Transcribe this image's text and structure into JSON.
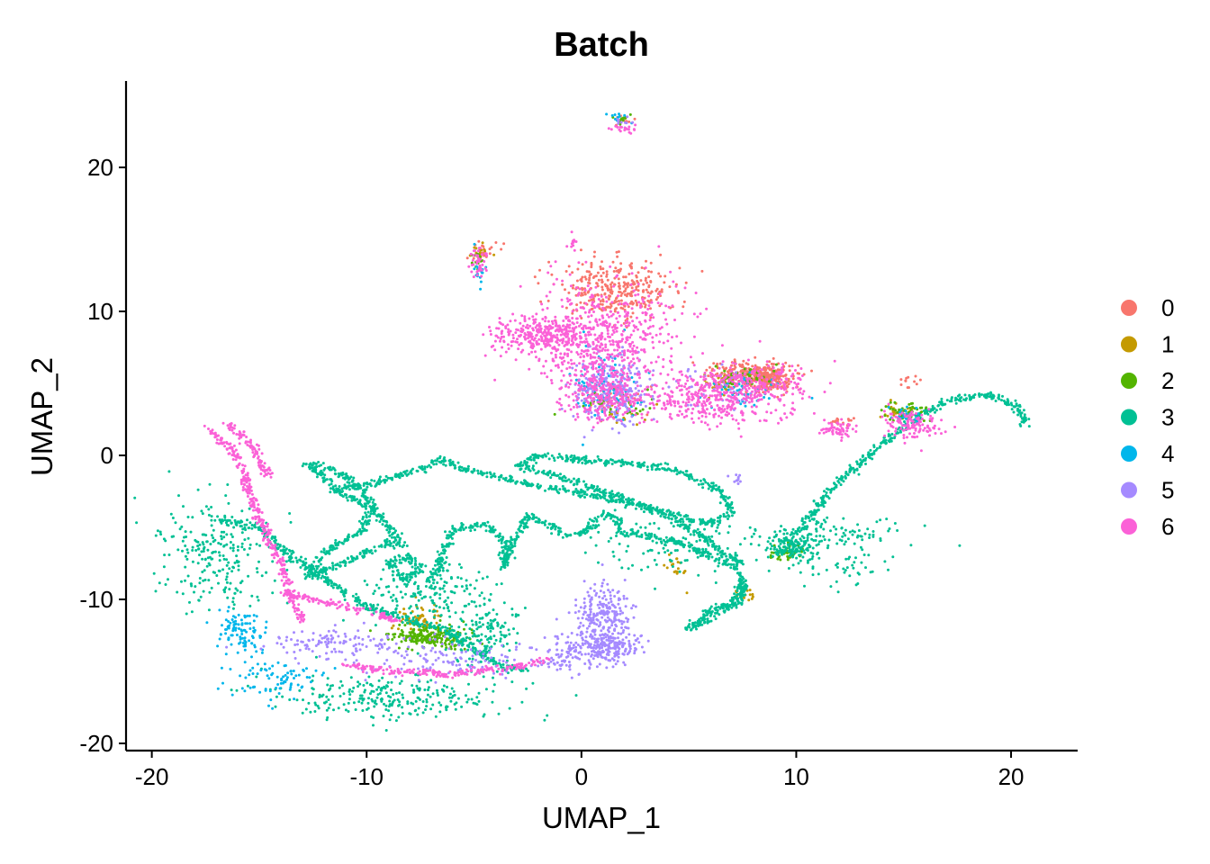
{
  "chart_data": {
    "type": "scatter",
    "title": "Batch",
    "xlabel": "UMAP_1",
    "ylabel": "UMAP_2",
    "xlim": [
      -21.2,
      23.1
    ],
    "ylim": [
      -20.5,
      26.0
    ],
    "xticks": [
      -20,
      -10,
      0,
      10,
      20
    ],
    "yticks": [
      -20,
      -10,
      0,
      10,
      20
    ],
    "xtick_labels": [
      "-20",
      "-10",
      "0",
      "10",
      "20"
    ],
    "ytick_labels": [
      "-20",
      "-10",
      "0",
      "10",
      "20"
    ],
    "grid": false,
    "legend_position": "right",
    "legend_title": "",
    "series": [
      {
        "name": "0",
        "color": "#F8766D",
        "clusters": [
          {
            "x": 1.5,
            "y": 11.5,
            "sx": 1.4,
            "sy": 1.0,
            "n": 320
          },
          {
            "x": 7.8,
            "y": 5.6,
            "sx": 1.0,
            "sy": 0.5,
            "n": 260
          },
          {
            "x": 8.8,
            "y": 5.2,
            "sx": 0.5,
            "sy": 0.4,
            "n": 150
          },
          {
            "x": -4.6,
            "y": 14.1,
            "sx": 0.4,
            "sy": 0.3,
            "n": 25
          },
          {
            "x": 15.2,
            "y": 5.1,
            "sx": 0.2,
            "sy": 0.3,
            "n": 12
          },
          {
            "x": 1.2,
            "y": 4.2,
            "sx": 0.8,
            "sy": 0.6,
            "n": 40
          },
          {
            "x": 2.0,
            "y": 23.3,
            "sx": 0.3,
            "sy": 0.2,
            "n": 10
          },
          {
            "x": 12.0,
            "y": 2.3,
            "sx": 0.3,
            "sy": 0.2,
            "n": 15
          }
        ]
      },
      {
        "name": "1",
        "color": "#C49A00",
        "clusters": [
          {
            "x": -7.6,
            "y": -11.4,
            "sx": 0.5,
            "sy": 0.5,
            "n": 70
          },
          {
            "x": 14.8,
            "y": 3.0,
            "sx": 0.4,
            "sy": 0.3,
            "n": 40
          },
          {
            "x": 4.4,
            "y": -7.8,
            "sx": 0.3,
            "sy": 0.6,
            "n": 20
          },
          {
            "x": 7.6,
            "y": -9.6,
            "sx": 0.3,
            "sy": 0.3,
            "n": 15
          },
          {
            "x": -4.7,
            "y": 14.2,
            "sx": 0.2,
            "sy": 0.2,
            "n": 15
          },
          {
            "x": 7.0,
            "y": 5.0,
            "sx": 0.8,
            "sy": 0.4,
            "n": 40
          },
          {
            "x": 1.8,
            "y": 3.0,
            "sx": 0.8,
            "sy": 0.5,
            "n": 25
          }
        ]
      },
      {
        "name": "2",
        "color": "#53B400",
        "clusters": [
          {
            "x": -7.0,
            "y": -12.6,
            "sx": 0.9,
            "sy": 0.4,
            "n": 220
          },
          {
            "x": 9.5,
            "y": -6.8,
            "sx": 0.4,
            "sy": 0.3,
            "n": 40
          },
          {
            "x": 15.2,
            "y": 3.0,
            "sx": 0.5,
            "sy": 0.4,
            "n": 50
          },
          {
            "x": 1.5,
            "y": 3.5,
            "sx": 1.0,
            "sy": 0.5,
            "n": 40
          },
          {
            "x": 7.5,
            "y": 5.4,
            "sx": 0.8,
            "sy": 0.4,
            "n": 40
          },
          {
            "x": -4.8,
            "y": 13.5,
            "sx": 0.2,
            "sy": 0.5,
            "n": 15
          },
          {
            "x": 2.0,
            "y": 23.3,
            "sx": 0.3,
            "sy": 0.2,
            "n": 10
          }
        ]
      },
      {
        "name": "3",
        "color": "#00C094",
        "clusters": [
          {
            "x": -17.0,
            "y": -7.0,
            "sx": 1.4,
            "sy": 1.8,
            "n": 240
          },
          {
            "x": -9.0,
            "y": -16.8,
            "sx": 2.8,
            "sy": 0.8,
            "n": 260
          },
          {
            "x": -4.5,
            "y": -12.5,
            "sx": 0.9,
            "sy": 1.3,
            "n": 160
          },
          {
            "x": -7.0,
            "y": -9.5,
            "sx": 1.5,
            "sy": 1.0,
            "n": 160
          },
          {
            "x": 9.8,
            "y": -6.4,
            "sx": 0.5,
            "sy": 0.4,
            "n": 120
          },
          {
            "x": 11.5,
            "y": -5.5,
            "sx": 1.8,
            "sy": 0.6,
            "n": 120
          },
          {
            "x": 5.0,
            "y": -6.5,
            "sx": 2.5,
            "sy": 0.9,
            "n": 120
          },
          {
            "x": 12.0,
            "y": -7.8,
            "sx": 1.2,
            "sy": 0.6,
            "n": 40
          }
        ],
        "paths": [
          [
            [
              -17.0,
              -4.4
            ],
            [
              -15.0,
              -5.0
            ],
            [
              -13.5,
              -7.0
            ],
            [
              -12.0,
              -8.5
            ],
            [
              -10.0,
              -10.5
            ],
            [
              -8.0,
              -11.5
            ],
            [
              -6.5,
              -12.0
            ],
            [
              -5.2,
              -13.2
            ],
            [
              -4.0,
              -14.5
            ],
            [
              -2.5,
              -15.0
            ]
          ],
          [
            [
              -12.8,
              -8.4
            ],
            [
              -11.0,
              -7.5
            ],
            [
              -9.0,
              -6.0
            ],
            [
              -8.3,
              -6.3
            ],
            [
              -9.5,
              -4.0
            ],
            [
              -11.5,
              -2.3
            ],
            [
              -12.8,
              -0.5
            ],
            [
              -12.0,
              -0.8
            ],
            [
              -10.5,
              -1.8
            ],
            [
              -9.7,
              -3.5
            ],
            [
              -10.2,
              -5.2
            ],
            [
              -11.8,
              -6.5
            ],
            [
              -12.8,
              -8.4
            ]
          ],
          [
            [
              -9.0,
              -7.5
            ],
            [
              -8.0,
              -7.0
            ],
            [
              -7.5,
              -8.0
            ],
            [
              -8.3,
              -8.6
            ],
            [
              -9.0,
              -7.5
            ]
          ],
          [
            [
              -7.0,
              -8.8
            ],
            [
              -6.0,
              -5.2
            ],
            [
              -4.5,
              -4.8
            ],
            [
              -3.5,
              -6.0
            ],
            [
              -3.6,
              -7.8
            ],
            [
              -3.2,
              -6.0
            ],
            [
              -2.5,
              -4.2
            ],
            [
              -1.5,
              -4.8
            ],
            [
              -0.8,
              -5.6
            ],
            [
              0.3,
              -5.2
            ],
            [
              1.0,
              -4.0
            ],
            [
              1.6,
              -4.3
            ],
            [
              1.8,
              -5.4
            ],
            [
              2.5,
              -5.4
            ],
            [
              3.5,
              -5.7
            ],
            [
              4.5,
              -6.0
            ],
            [
              5.5,
              -6.6
            ],
            [
              6.5,
              -7.3
            ],
            [
              7.3,
              -8.0
            ],
            [
              7.6,
              -9.4
            ],
            [
              7.2,
              -10.3
            ],
            [
              6.0,
              -10.8
            ],
            [
              5.0,
              -12.0
            ],
            [
              6.5,
              -11.0
            ],
            [
              7.3,
              -9.8
            ],
            [
              7.7,
              -8.7
            ]
          ],
          [
            [
              7.5,
              -7.5
            ],
            [
              5.0,
              -5.0
            ],
            [
              2.0,
              -3.0
            ],
            [
              -1.0,
              -1.5
            ],
            [
              -3.0,
              -0.7
            ],
            [
              -2.0,
              0.0
            ],
            [
              0.0,
              -0.3
            ],
            [
              2.0,
              -0.5
            ],
            [
              4.5,
              -1.0
            ],
            [
              6.5,
              -2.5
            ],
            [
              7.0,
              -4.0
            ],
            [
              6.0,
              -4.8
            ],
            [
              3.0,
              -3.6
            ],
            [
              0.5,
              -2.8
            ],
            [
              -2.5,
              -2.0
            ],
            [
              -4.0,
              -1.5
            ],
            [
              -5.5,
              -1.0
            ],
            [
              -6.5,
              -0.3
            ],
            [
              -7.5,
              -1.0
            ],
            [
              -9.5,
              -1.8
            ],
            [
              -11.5,
              -2.4
            ]
          ],
          [
            [
              10.0,
              -5.5
            ],
            [
              11.5,
              -2.5
            ],
            [
              13.0,
              -0.5
            ],
            [
              15.0,
              2.0
            ],
            [
              17.0,
              3.8
            ],
            [
              19.0,
              4.2
            ],
            [
              20.2,
              3.5
            ],
            [
              20.8,
              2.0
            ]
          ]
        ]
      },
      {
        "name": "4",
        "color": "#00B6EB",
        "clusters": [
          {
            "x": -15.8,
            "y": -12.2,
            "sx": 0.6,
            "sy": 0.8,
            "n": 100
          },
          {
            "x": -14.0,
            "y": -15.5,
            "sx": 1.2,
            "sy": 0.7,
            "n": 80
          },
          {
            "x": 1.3,
            "y": 5.0,
            "sx": 0.8,
            "sy": 1.3,
            "n": 110
          },
          {
            "x": 7.5,
            "y": 4.5,
            "sx": 0.9,
            "sy": 0.6,
            "n": 50
          },
          {
            "x": 15.0,
            "y": 2.8,
            "sx": 0.4,
            "sy": 0.3,
            "n": 25
          },
          {
            "x": -4.8,
            "y": 13.0,
            "sx": 0.2,
            "sy": 0.5,
            "n": 15
          },
          {
            "x": 1.8,
            "y": 23.5,
            "sx": 0.3,
            "sy": 0.2,
            "n": 10
          }
        ]
      },
      {
        "name": "5",
        "color": "#A58AFF",
        "clusters": [
          {
            "x": 1.3,
            "y": 4.5,
            "sx": 0.9,
            "sy": 1.3,
            "n": 240
          },
          {
            "x": 1.0,
            "y": -11.0,
            "sx": 0.7,
            "sy": 1.0,
            "n": 220
          },
          {
            "x": 1.3,
            "y": -13.3,
            "sx": 0.8,
            "sy": 0.6,
            "n": 200
          },
          {
            "x": -11.5,
            "y": -13.0,
            "sx": 1.6,
            "sy": 0.5,
            "n": 120
          },
          {
            "x": -6.0,
            "y": -14.2,
            "sx": 2.0,
            "sy": 0.6,
            "n": 120
          },
          {
            "x": -0.6,
            "y": -13.9,
            "sx": 0.9,
            "sy": 0.6,
            "n": 100
          },
          {
            "x": 6.2,
            "y": 4.8,
            "sx": 1.0,
            "sy": 0.8,
            "n": 40
          },
          {
            "x": 7.3,
            "y": -1.6,
            "sx": 0.2,
            "sy": 0.2,
            "n": 10
          },
          {
            "x": 2.0,
            "y": 23.3,
            "sx": 0.2,
            "sy": 0.2,
            "n": 10
          }
        ]
      },
      {
        "name": "6",
        "color": "#FB61D7",
        "clusters": [
          {
            "x": 1.0,
            "y": 8.0,
            "sx": 1.8,
            "sy": 2.0,
            "n": 650
          },
          {
            "x": -1.8,
            "y": 8.4,
            "sx": 1.2,
            "sy": 0.6,
            "n": 250
          },
          {
            "x": 0.8,
            "y": 4.2,
            "sx": 0.9,
            "sy": 1.0,
            "n": 200
          },
          {
            "x": 5.8,
            "y": 3.6,
            "sx": 2.0,
            "sy": 0.8,
            "n": 320
          },
          {
            "x": 7.8,
            "y": 5.0,
            "sx": 1.5,
            "sy": 0.6,
            "n": 220
          },
          {
            "x": 15.3,
            "y": 2.2,
            "sx": 0.6,
            "sy": 0.5,
            "n": 120
          },
          {
            "x": 12.0,
            "y": 1.8,
            "sx": 0.4,
            "sy": 0.3,
            "n": 60
          },
          {
            "x": -4.8,
            "y": 13.4,
            "sx": 0.2,
            "sy": 0.5,
            "n": 40
          },
          {
            "x": 2.0,
            "y": 22.7,
            "sx": 0.3,
            "sy": 0.15,
            "n": 20
          },
          {
            "x": -0.3,
            "y": 14.8,
            "sx": 0.15,
            "sy": 0.3,
            "n": 12
          }
        ],
        "paths": [
          [
            [
              -17.5,
              2.0
            ],
            [
              -16.0,
              0.0
            ],
            [
              -15.5,
              -2.5
            ],
            [
              -14.8,
              -5.0
            ],
            [
              -14.0,
              -7.5
            ],
            [
              -13.5,
              -10.0
            ],
            [
              -13.0,
              -11.5
            ]
          ],
          [
            [
              -16.5,
              2.2
            ],
            [
              -15.5,
              1.0
            ],
            [
              -14.5,
              -1.5
            ]
          ],
          [
            [
              -14.0,
              -9.5
            ],
            [
              -12.0,
              -10.2
            ],
            [
              -10.0,
              -10.8
            ],
            [
              -8.5,
              -11.5
            ]
          ],
          [
            [
              -11.0,
              -14.5
            ],
            [
              -9.0,
              -15.0
            ],
            [
              -6.0,
              -15.2
            ],
            [
              -3.0,
              -14.7
            ],
            [
              -1.5,
              -14.2
            ]
          ]
        ]
      }
    ]
  }
}
